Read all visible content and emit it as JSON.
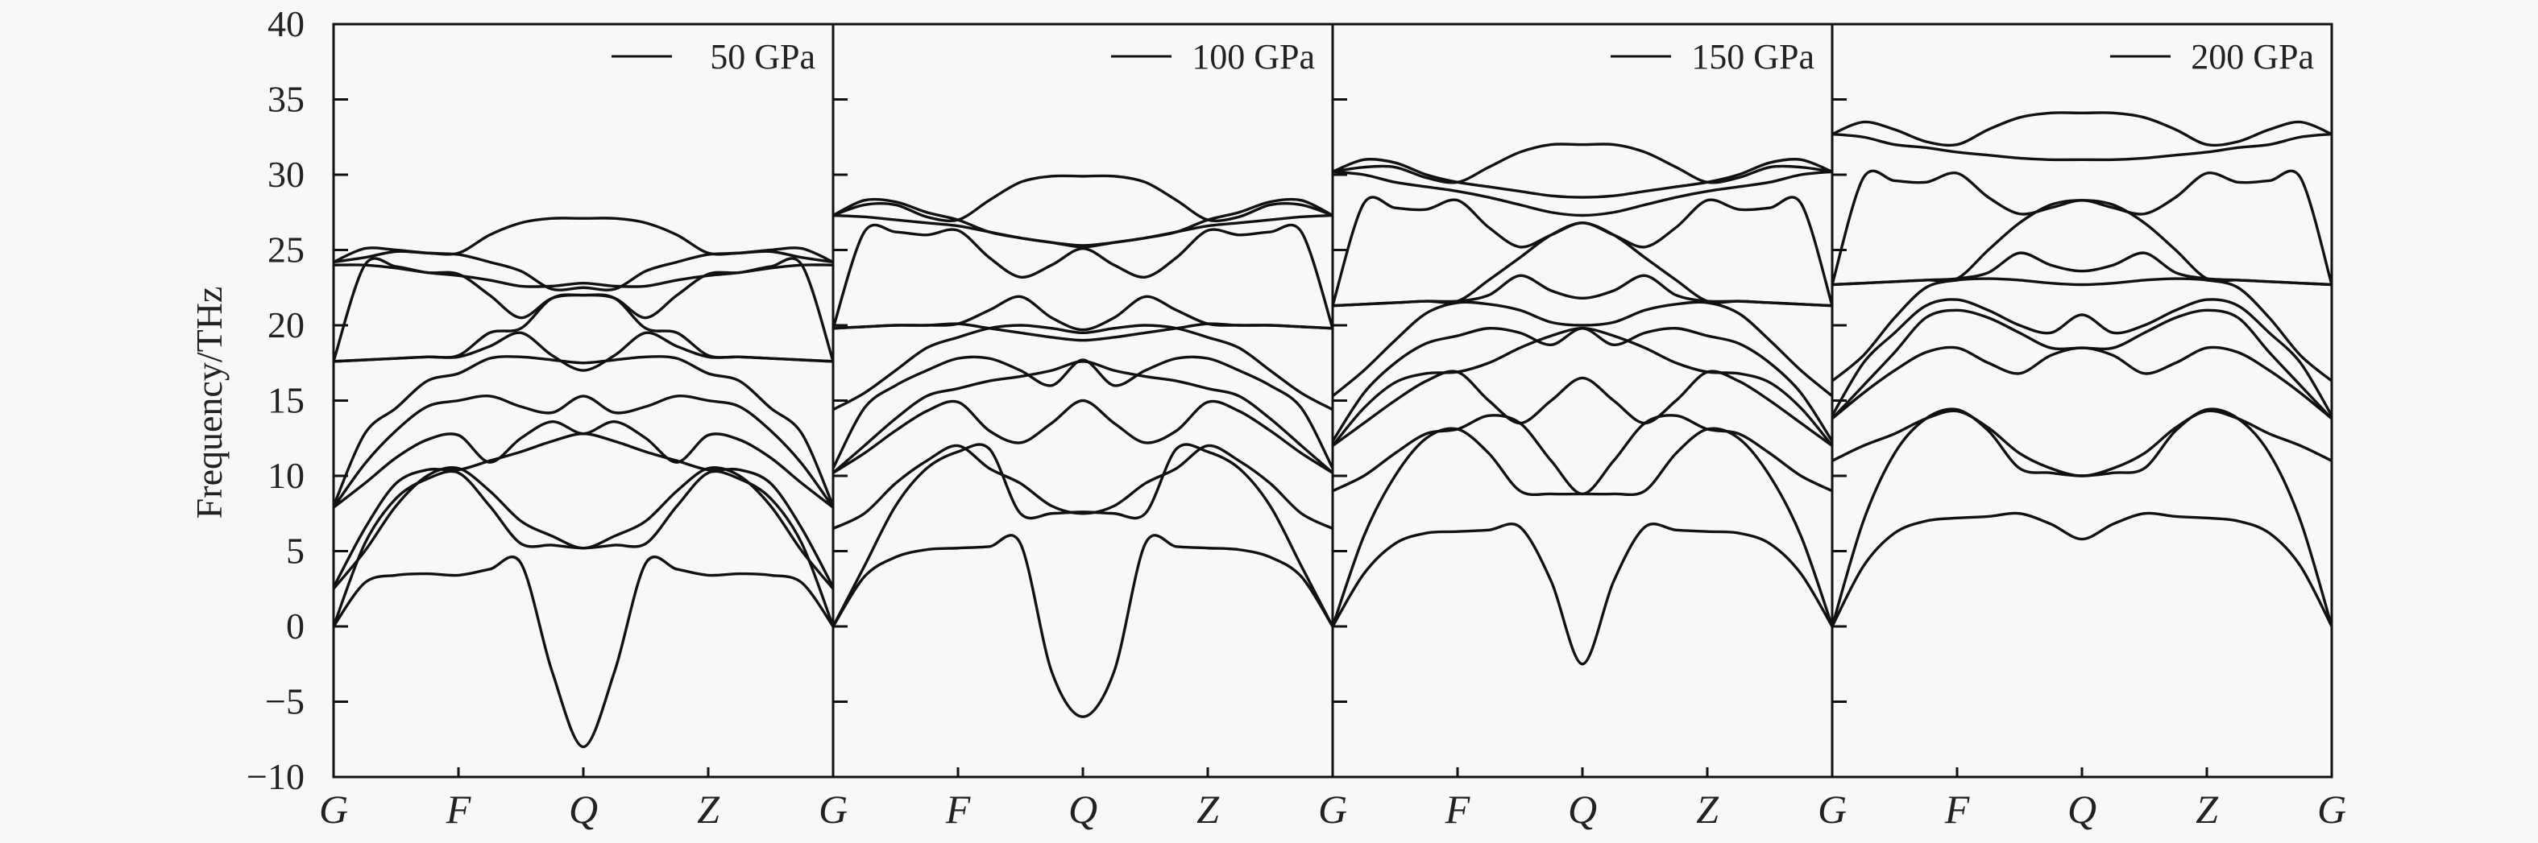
{
  "chart_data": {
    "type": "line",
    "title": "",
    "ylabel": "Frequency/THz",
    "xlabel": "",
    "ylim": [
      -10,
      40
    ],
    "yticks": [
      "-10",
      "-5",
      "0",
      "5",
      "10",
      "15",
      "20",
      "25",
      "30",
      "35",
      "40"
    ],
    "path_labels": [
      "G",
      "F",
      "Q",
      "Z",
      "G"
    ],
    "grid": false,
    "legend_placement": "top-right of each panel",
    "note": "band values sampled at 9 evenly spaced points from G to Q (F at index 4, Q at index 8); path Q-Z-G mirrors G-F-Q",
    "panels": [
      {
        "legend": "50 GPa",
        "bands": [
          [
            0,
            2.9,
            3.4,
            3.5,
            3.4,
            3.8,
            4.2,
            -3,
            -8
          ],
          [
            0,
            5.5,
            8.5,
            9.8,
            10.2,
            8,
            5.5,
            5.4,
            5.2
          ],
          [
            2.5,
            5,
            8,
            10,
            10.5,
            9,
            7,
            6,
            5.2
          ],
          [
            2.6,
            6.5,
            9.5,
            10.4,
            10.4,
            11,
            11.6,
            12.3,
            12.8
          ],
          [
            7.9,
            9.5,
            11.2,
            12.4,
            12.7,
            10.9,
            12.5,
            13.6,
            12.8
          ],
          [
            7.9,
            10.8,
            13,
            14.6,
            15,
            15.3,
            14.6,
            14.2,
            15.3
          ],
          [
            8,
            12.8,
            14.5,
            16.3,
            16.8,
            17.8,
            17.9,
            17.7,
            17.5
          ],
          [
            17.6,
            17.7,
            17.8,
            17.9,
            17.9,
            18.6,
            19.5,
            18,
            17
          ],
          [
            17.6,
            24,
            23.9,
            23.5,
            23.4,
            22,
            20.5,
            21.8,
            22
          ],
          [
            24,
            24,
            23.8,
            23.5,
            23.3,
            23,
            22.6,
            22.6,
            22.8
          ],
          [
            24.2,
            25.1,
            25,
            24.8,
            24.7,
            24.2,
            23.6,
            22.4,
            22.5
          ],
          [
            24.2,
            24.5,
            24.9,
            24.8,
            24.8,
            26,
            26.8,
            27.1,
            27.1
          ],
          [
            17.6,
            17.7,
            17.8,
            17.9,
            18,
            19.5,
            19.8,
            21.8,
            22
          ]
        ]
      },
      {
        "legend": "100 GPa",
        "bands": [
          [
            0,
            3.3,
            4.6,
            5.1,
            5.2,
            5.3,
            5.5,
            -3,
            -6
          ],
          [
            0,
            4,
            8,
            10.5,
            11.6,
            11.8,
            7.5,
            7.5,
            7.6
          ],
          [
            6.5,
            7.5,
            9.5,
            11,
            12,
            10.5,
            9.5,
            8,
            7.5
          ],
          [
            10.2,
            11.5,
            13,
            14.3,
            14.9,
            13,
            12.2,
            13.5,
            15
          ],
          [
            10.2,
            12,
            13.8,
            15.3,
            15.8,
            16.3,
            16.6,
            17,
            17.6
          ],
          [
            10.5,
            14.5,
            16,
            17,
            17.8,
            17.8,
            17,
            16,
            17.7
          ],
          [
            14.4,
            15.5,
            17,
            18.5,
            19.2,
            19.8,
            20,
            19.8,
            19.5
          ],
          [
            19.8,
            19.9,
            20,
            20,
            20.1,
            19.8,
            19.5,
            19.2,
            19
          ],
          [
            19.8,
            26.2,
            26.2,
            26,
            26.3,
            24.5,
            23.2,
            24,
            25.1
          ],
          [
            27.3,
            27.2,
            27,
            26.8,
            26.6,
            26.2,
            25.8,
            25.5,
            25.2
          ],
          [
            27.3,
            28.3,
            28.2,
            27.5,
            27,
            26.2,
            25.8,
            25.5,
            25.3
          ],
          [
            27.3,
            28,
            28,
            27.2,
            27,
            28.3,
            29.5,
            29.9,
            29.9
          ],
          [
            19.8,
            19.9,
            20,
            20,
            20.1,
            21,
            21.9,
            20.5,
            19.7
          ]
        ]
      },
      {
        "legend": "150 GPa",
        "bands": [
          [
            0,
            3.5,
            5.5,
            6.2,
            6.3,
            6.4,
            6.6,
            3,
            -2.5
          ],
          [
            0,
            6,
            10,
            12.5,
            13.1,
            11.5,
            9,
            8.8,
            8.8
          ],
          [
            9,
            10,
            11.5,
            12.8,
            13.1,
            14,
            13.5,
            11,
            8.8
          ],
          [
            12,
            13.5,
            15,
            16.3,
            16.9,
            15,
            13.5,
            15,
            16.5
          ],
          [
            12,
            14.5,
            16.2,
            16.8,
            16.9,
            17.5,
            18.5,
            19.3,
            19.8
          ],
          [
            12.3,
            15.5,
            17.5,
            18.8,
            19.3,
            19.8,
            19.5,
            18.7,
            19.8
          ],
          [
            15.3,
            17,
            19,
            20.8,
            21.5,
            21.4,
            21,
            20.2,
            20
          ],
          [
            21.3,
            21.4,
            21.5,
            21.6,
            21.6,
            22,
            23.3,
            22.3,
            21.8
          ],
          [
            21.3,
            28.1,
            27.8,
            27.7,
            28.3,
            26.5,
            25.2,
            26,
            26.8
          ],
          [
            30.2,
            30,
            29.5,
            29.2,
            28.9,
            28.5,
            28,
            27.5,
            27.3
          ],
          [
            30.2,
            31,
            30.8,
            30,
            29.5,
            29.2,
            28.9,
            28.6,
            28.5
          ],
          [
            30.2,
            30.5,
            30.5,
            29.8,
            29.5,
            30.5,
            31.5,
            32,
            32
          ],
          [
            21.3,
            21.4,
            21.5,
            21.6,
            21.6,
            23,
            24.5,
            26,
            26.8
          ]
        ]
      },
      {
        "legend": "200 GPa",
        "bands": [
          [
            0,
            4,
            6.2,
            7,
            7.2,
            7.3,
            7.5,
            6.8,
            5.8
          ],
          [
            0,
            7,
            11.5,
            13.8,
            14.4,
            13,
            10.5,
            10.2,
            10
          ],
          [
            11,
            12,
            12.8,
            13.8,
            14.3,
            13.2,
            11.5,
            10.5,
            10
          ],
          [
            13.8,
            15.5,
            17,
            18.2,
            18.5,
            17.5,
            16.8,
            18,
            18.5
          ],
          [
            13.8,
            16,
            18.2,
            20.5,
            21,
            20.5,
            19.5,
            18.5,
            18.5
          ],
          [
            14,
            17.5,
            19.5,
            21.3,
            21.7,
            21,
            20,
            19.5,
            20.7
          ],
          [
            16.3,
            18,
            20.5,
            22.5,
            23,
            23.1,
            23,
            22.8,
            22.7
          ],
          [
            22.7,
            22.8,
            22.9,
            23,
            23.1,
            23.5,
            24.8,
            24,
            23.6
          ],
          [
            22.7,
            29.8,
            29.6,
            29.5,
            30.1,
            28.5,
            27.4,
            27.8,
            28.3
          ],
          [
            32.7,
            32.5,
            32,
            31.8,
            31.5,
            31.3,
            31.1,
            31,
            31
          ],
          [
            32.7,
            33.5,
            33,
            32.2,
            32,
            33,
            33.8,
            34.1,
            34.1
          ],
          [
            22.7,
            22.8,
            22.9,
            23,
            23.1,
            25,
            26.8,
            28,
            28.3
          ]
        ]
      }
    ]
  }
}
